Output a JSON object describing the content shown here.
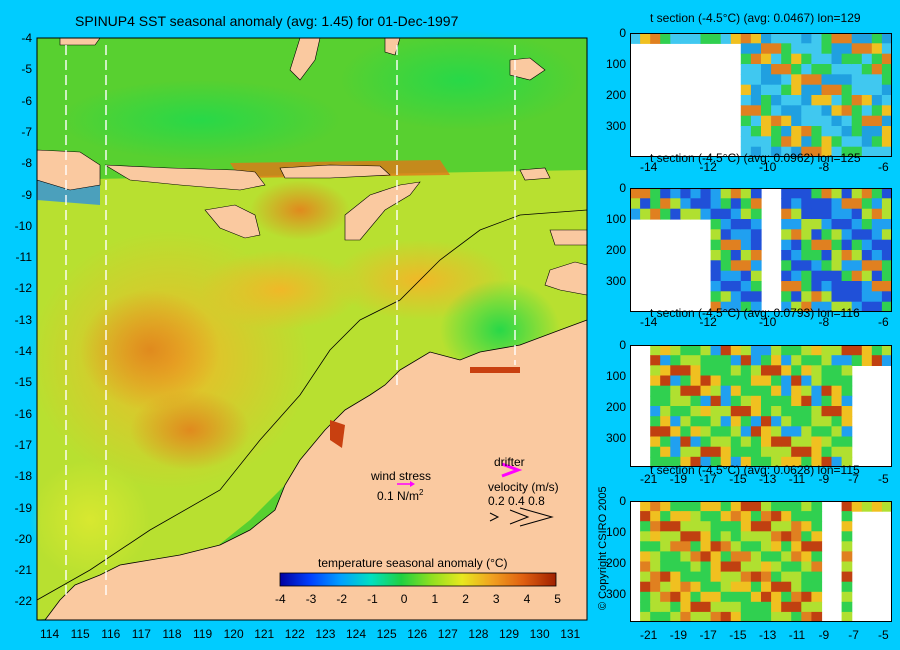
{
  "main_map": {
    "title": "SPINUP4 SST seasonal anomaly (avg: 1.45) for 01-Dec-1997",
    "lat_ticks": [
      "-4",
      "-5",
      "-6",
      "-7",
      "-8",
      "-9",
      "-10",
      "-11",
      "-12",
      "-13",
      "-14",
      "-15",
      "-16",
      "-17",
      "-18",
      "-19",
      "-20",
      "-21",
      "-22"
    ],
    "lon_ticks": [
      "114",
      "115",
      "116",
      "117",
      "118",
      "119",
      "120",
      "121",
      "122",
      "123",
      "124",
      "125",
      "126",
      "127",
      "128",
      "129",
      "130",
      "131"
    ],
    "wind_stress_label": "wind stress",
    "wind_stress_value": "0.1 N/m",
    "wind_stress_sup": "2",
    "drifter_label": "drifter",
    "velocity_label": "velocity (m/s)",
    "velocity_values": [
      "0.2",
      "0.4",
      "0.8"
    ],
    "colorbar_title": "temperature seasonal anomaly (°C)",
    "colorbar_ticks": [
      "-4",
      "-3",
      "-2",
      "-1",
      "0",
      "1",
      "2",
      "3",
      "4",
      "5"
    ],
    "colors": {
      "background": "#00ccff",
      "land": "#fac9a0",
      "wind_arrow": "#ff00ff",
      "drifter_arrow": "#ff00ff"
    }
  },
  "sections": [
    {
      "title": "t section (-4.5°C) (avg: 0.0467) lon=129",
      "depth_ticks": [
        "0",
        "100",
        "200",
        "300"
      ],
      "x_ticks": [
        "-14",
        "-12",
        "-10",
        "-8",
        "-6"
      ]
    },
    {
      "title": "t section (-4.5°C) (avg: 0.0962) lon=125",
      "depth_ticks": [
        "0",
        "100",
        "200",
        "300"
      ],
      "x_ticks": [
        "-14",
        "-12",
        "-10",
        "-8",
        "-6"
      ]
    },
    {
      "title": "t section (-4.5°C) (avg: 0.0793) lon=116",
      "depth_ticks": [
        "0",
        "100",
        "200",
        "300"
      ],
      "x_ticks": [
        "-21",
        "-19",
        "-17",
        "-15",
        "-13",
        "-11",
        "-9",
        "-7",
        "-5"
      ]
    },
    {
      "title": "t section (-4.5°C) (avg: 0.0628) lon=115",
      "depth_ticks": [
        "0",
        "100",
        "200",
        "300"
      ],
      "x_ticks": [
        "-21",
        "-19",
        "-17",
        "-15",
        "-13",
        "-11",
        "-9",
        "-7",
        "-5"
      ]
    }
  ],
  "copyright": "© Copyright CSIRO 2005"
}
